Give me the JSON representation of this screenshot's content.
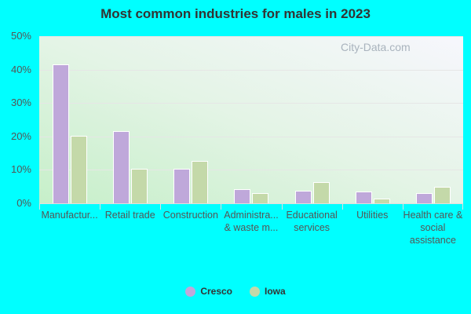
{
  "chart_data": {
    "type": "bar",
    "title": "Most common industries for males in 2023",
    "xlabel": "",
    "ylabel": "",
    "ylim": [
      0,
      50
    ],
    "yticks": [
      "0%",
      "10%",
      "20%",
      "30%",
      "40%",
      "50%"
    ],
    "grid": true,
    "legend_position": "bottom",
    "categories": [
      "Manufactur...",
      "Retail trade",
      "Construction",
      "Administra... & waste m...",
      "Educational services",
      "Utilities",
      "Health care & social assistance"
    ],
    "series": [
      {
        "name": "Cresco",
        "color": "#bfa8da",
        "values": [
          41.5,
          21.7,
          10.4,
          4.2,
          3.8,
          3.5,
          3.1
        ]
      },
      {
        "name": "Iowa",
        "color": "#c4d9a9",
        "values": [
          20.3,
          10.4,
          12.7,
          3.1,
          6.4,
          1.4,
          5.0
        ]
      }
    ]
  },
  "watermark": "City-Data.com"
}
